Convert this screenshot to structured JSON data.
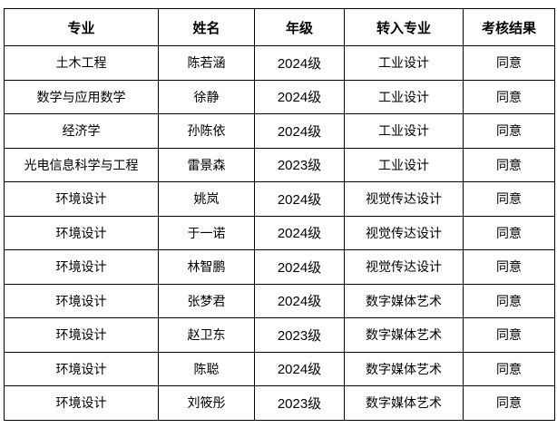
{
  "headers": [
    "专业",
    "姓名",
    "年级",
    "转入专业",
    "考核结果"
  ],
  "rows": [
    [
      "土木工程",
      "陈若涵",
      "2024级",
      "工业设计",
      "同意"
    ],
    [
      "数学与应用数学",
      "徐静",
      "2024级",
      "工业设计",
      "同意"
    ],
    [
      "经济学",
      "孙陈依",
      "2024级",
      "工业设计",
      "同意"
    ],
    [
      "光电信息科学与工程",
      "雷景森",
      "2023级",
      "工业设计",
      "同意"
    ],
    [
      "环境设计",
      "姚岚",
      "2024级",
      "视觉传达设计",
      "同意"
    ],
    [
      "环境设计",
      "于一诺",
      "2024级",
      "视觉传达设计",
      "同意"
    ],
    [
      "环境设计",
      "林智鹏",
      "2024级",
      "视觉传达设计",
      "同意"
    ],
    [
      "环境设计",
      "张梦君",
      "2024级",
      "数字媒体艺术",
      "同意"
    ],
    [
      "环境设计",
      "赵卫东",
      "2023级",
      "数字媒体艺术",
      "同意"
    ],
    [
      "环境设计",
      "陈聪",
      "2024级",
      "数字媒体艺术",
      "同意"
    ],
    [
      "环境设计",
      "刘筱彤",
      "2023级",
      "数字媒体艺术",
      "同意"
    ]
  ]
}
